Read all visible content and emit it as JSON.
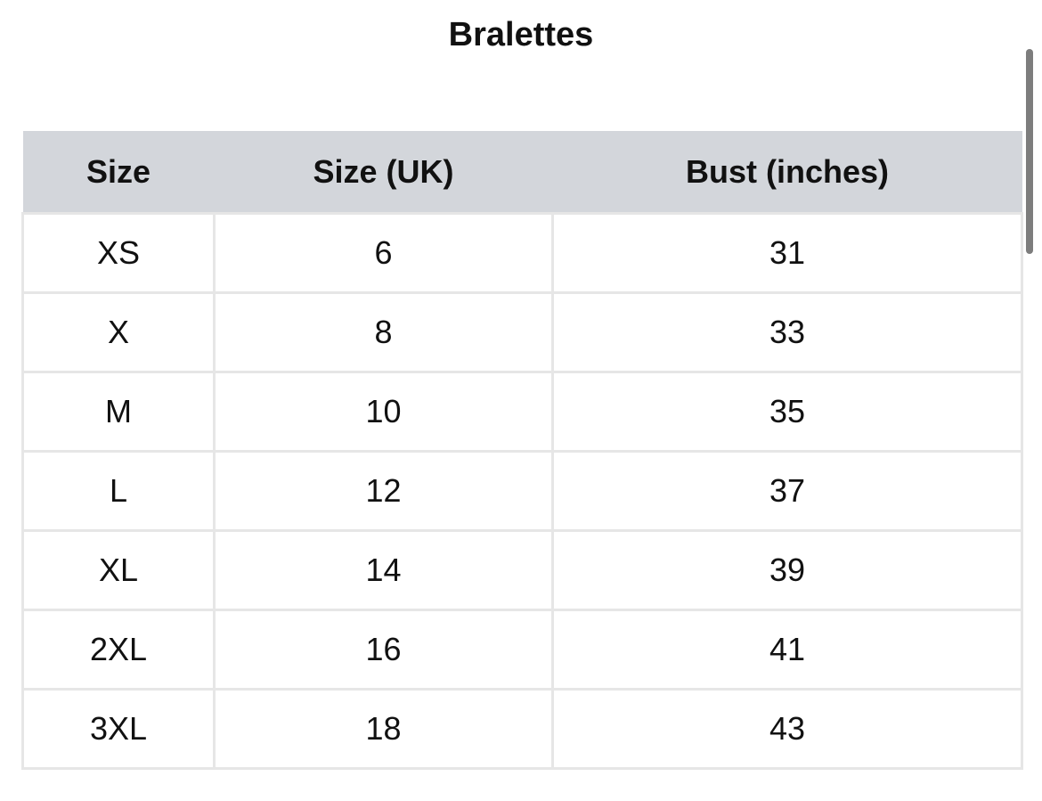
{
  "title": "Bralettes",
  "table": {
    "headers": [
      "Size",
      "Size (UK)",
      "Bust (inches)"
    ],
    "rows": [
      [
        "XS",
        "6",
        "31"
      ],
      [
        "X",
        "8",
        "33"
      ],
      [
        "M",
        "10",
        "35"
      ],
      [
        "L",
        "12",
        "37"
      ],
      [
        "XL",
        "14",
        "39"
      ],
      [
        "2XL",
        "16",
        "41"
      ],
      [
        "3XL",
        "18",
        "43"
      ]
    ]
  },
  "colors": {
    "header_bg": "#d3d6db",
    "border": "#e6e6e6"
  }
}
